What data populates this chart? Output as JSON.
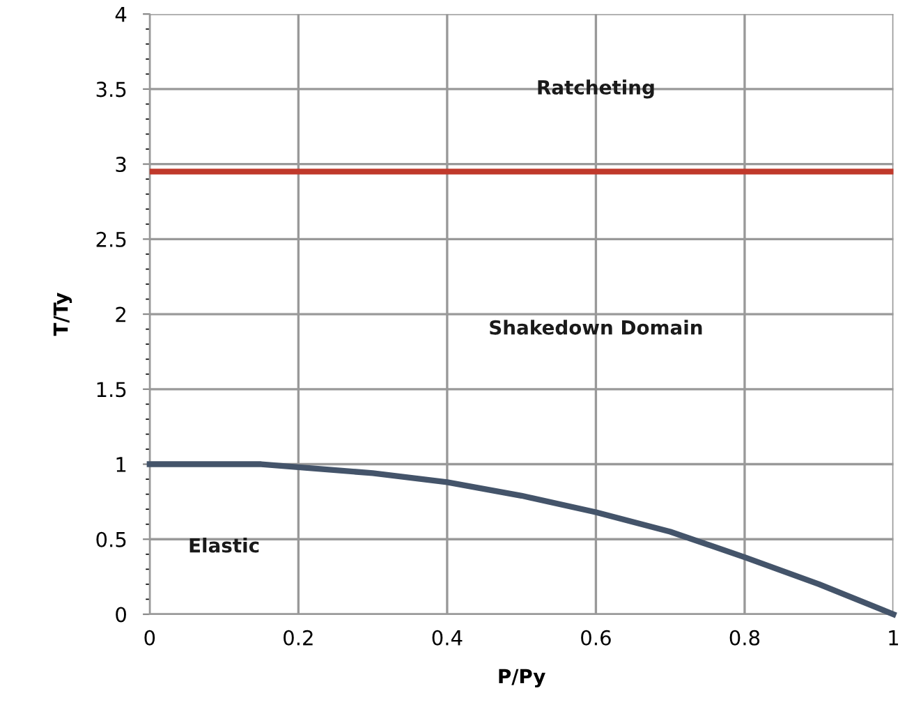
{
  "chart_data": {
    "type": "line",
    "xlabel": "P/Py",
    "ylabel": "T/Ty",
    "x": [
      0,
      0.05,
      0.1,
      0.15,
      0.2,
      0.3,
      0.4,
      0.5,
      0.6,
      0.7,
      0.8,
      0.9,
      1.0
    ],
    "series": [
      {
        "color": "#44546a",
        "values": [
          1.0,
          1.0,
          1.0,
          1.0,
          0.98,
          0.94,
          0.88,
          0.79,
          0.68,
          0.55,
          0.38,
          0.2,
          0
        ]
      }
    ],
    "ref_lines": [
      {
        "axis": "y",
        "value": 2.95,
        "color": "#c0392b"
      }
    ],
    "annotations": [
      "Ratcheting",
      "Shakedown Domain",
      "Elastic"
    ],
    "xlim": [
      0,
      1
    ],
    "xticks": [
      0,
      0.2,
      0.4,
      0.6,
      0.8,
      1
    ],
    "ylim": [
      0,
      4
    ],
    "yticks": [
      0,
      0.5,
      1,
      1.5,
      2,
      2.5,
      3,
      3.5,
      4
    ],
    "grid": true,
    "marker": "none",
    "line_style": "solid",
    "legend": false
  }
}
